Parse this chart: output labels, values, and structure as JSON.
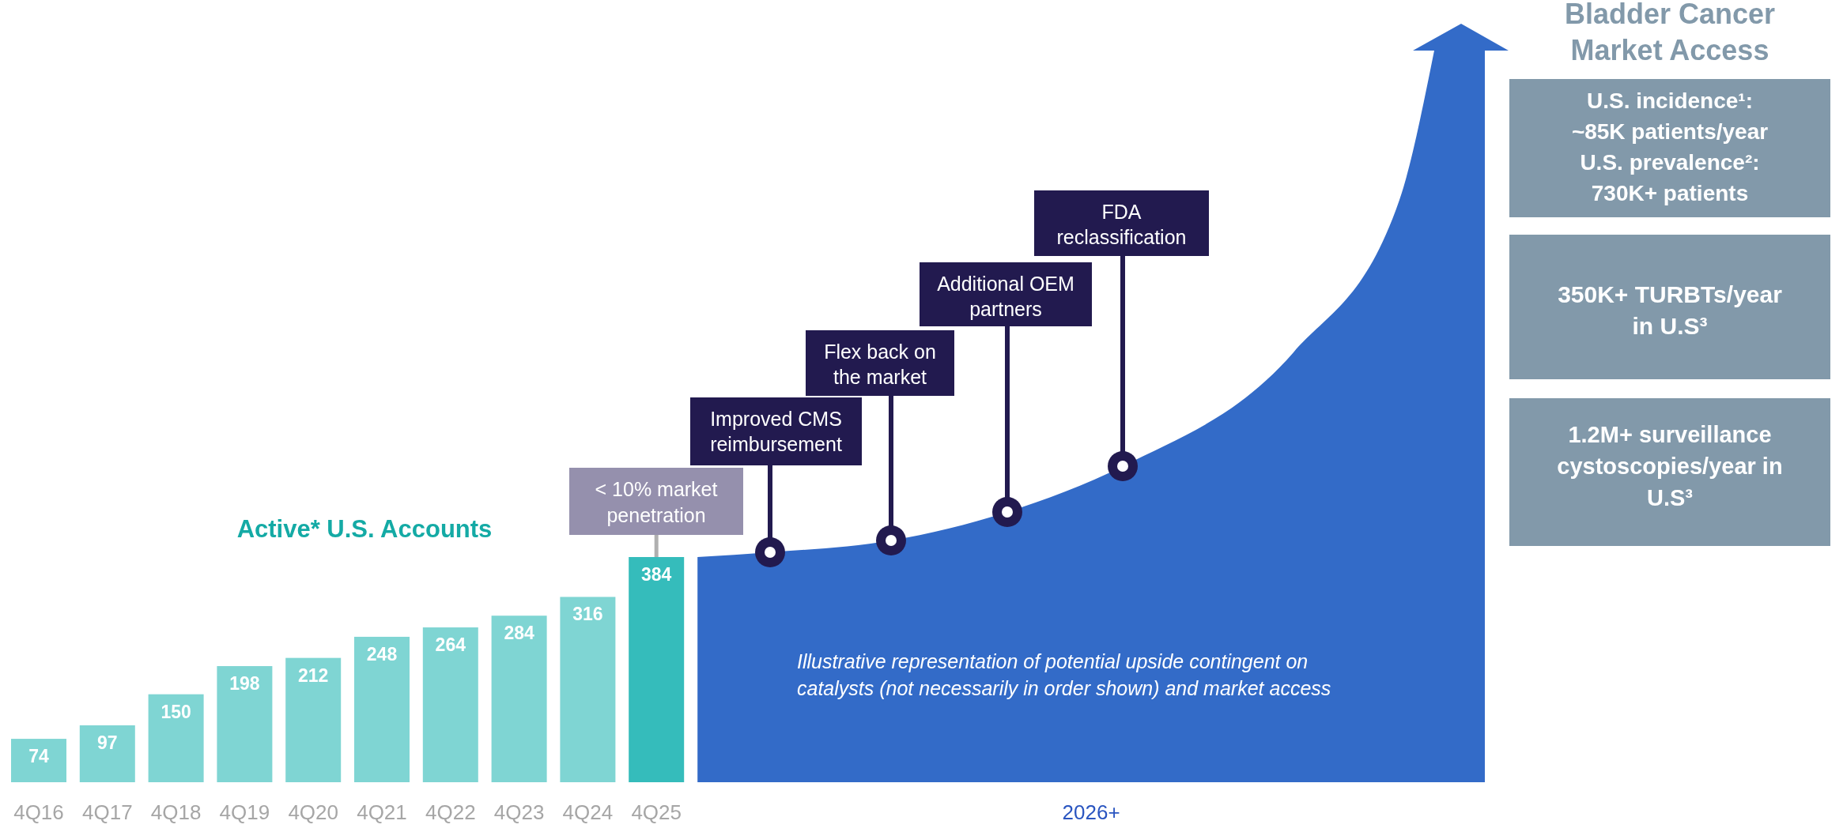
{
  "chart_data": {
    "type": "bar",
    "title": "Active* U.S. Accounts",
    "categories": [
      "4Q16",
      "4Q17",
      "4Q18",
      "4Q19",
      "4Q20",
      "4Q21",
      "4Q22",
      "4Q23",
      "4Q24",
      "4Q25"
    ],
    "values": [
      74,
      97,
      150,
      198,
      212,
      248,
      264,
      284,
      316,
      384
    ],
    "colors": [
      "#7fd5d3",
      "#7fd5d3",
      "#7fd5d3",
      "#7fd5d3",
      "#7fd5d3",
      "#7fd5d3",
      "#7fd5d3",
      "#7fd5d3",
      "#7fd5d3",
      "#35bcbb"
    ],
    "data_labels": true,
    "annotations": [
      "< 10% market\npenetration",
      "Improved CMS\nreimbursement",
      "Flex back on\nthe market",
      "Additional OEM\npartners",
      "FDA\nreclassification",
      "Illustrative representation of potential upside contingent on\ncatalysts (not necessarily in order shown) and market access",
      "Bladder Cancer\nMarket Access",
      "U.S. incidence¹:\n~85K patients/year\nU.S. prevalence²:\n730K+ patients",
      "350K+ TURBTs/year\nin U.S³",
      "1.2M+ surveillance\ncystoscopies/year in\nU.S³",
      "2026+"
    ]
  }
}
